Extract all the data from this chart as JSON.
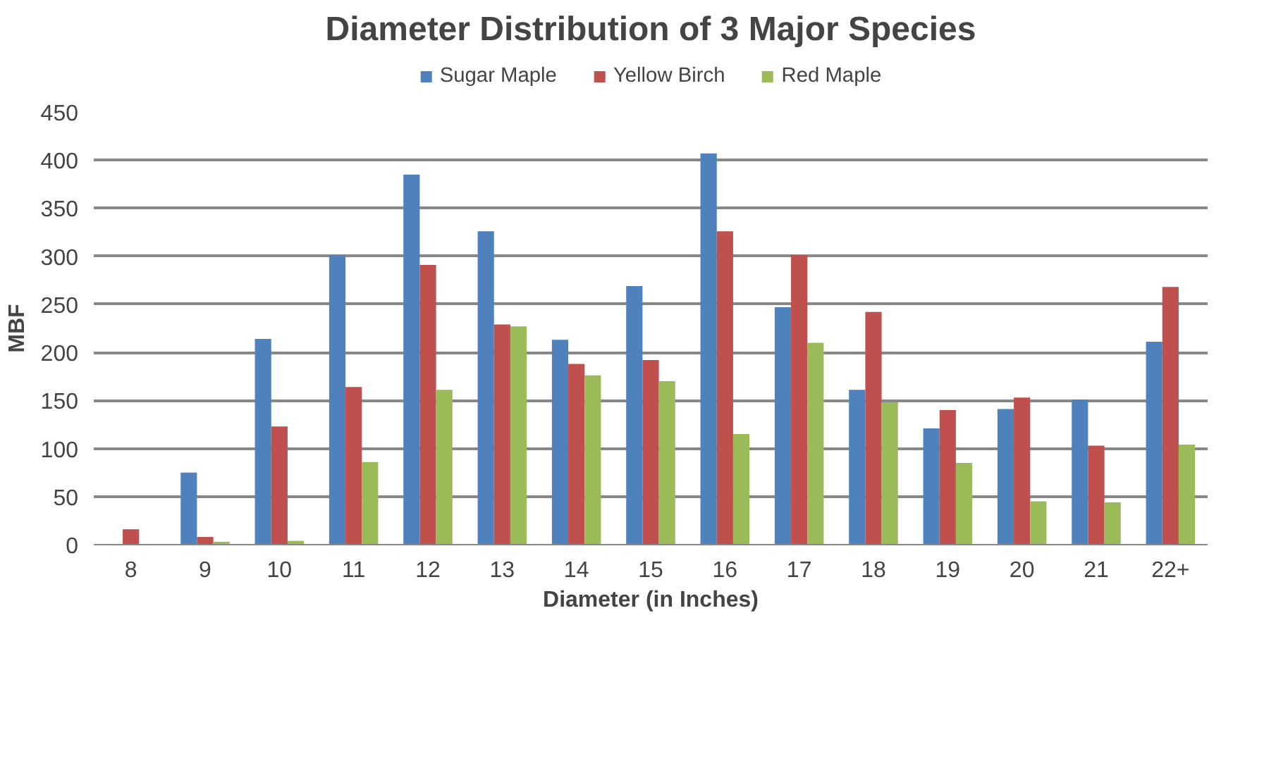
{
  "chart_data": {
    "type": "bar",
    "title": "Diameter Distribution of 3 Major Species",
    "xlabel": "Diameter (in Inches)",
    "ylabel": "MBF",
    "categories": [
      "8",
      "9",
      "10",
      "11",
      "12",
      "13",
      "14",
      "15",
      "16",
      "17",
      "18",
      "19",
      "20",
      "21",
      "22+"
    ],
    "series": [
      {
        "name": "Sugar Maple",
        "color": "#4f81bd",
        "values": [
          0,
          75,
          214,
          301,
          385,
          326,
          213,
          269,
          407,
          247,
          161,
          121,
          141,
          151,
          211
        ]
      },
      {
        "name": "Yellow Birch",
        "color": "#c0504d",
        "values": [
          16,
          8,
          123,
          164,
          291,
          229,
          188,
          192,
          326,
          301,
          242,
          140,
          153,
          103,
          268
        ]
      },
      {
        "name": "Red Maple",
        "color": "#9bbb59",
        "values": [
          0,
          3,
          4,
          86,
          161,
          227,
          176,
          170,
          115,
          210,
          148,
          85,
          45,
          44,
          104
        ]
      }
    ],
    "ylim": [
      0,
      450
    ],
    "yticks": [
      0,
      50,
      100,
      150,
      200,
      250,
      300,
      350,
      400,
      450
    ],
    "grid": "y",
    "legend": "top"
  }
}
